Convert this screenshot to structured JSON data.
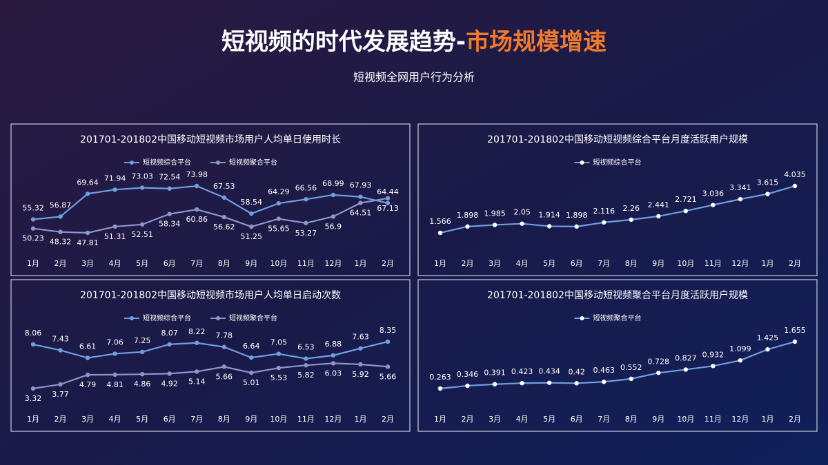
{
  "header": {
    "title": "短视频的时代发展趋势-",
    "title_highlight": "市场规模增速",
    "subtitle": "短视频全网用户行为分析"
  },
  "chart_data": [
    {
      "type": "line",
      "title": "201701-201802中国移动短视频市场用户人均单日使用时长",
      "categories": [
        "1月",
        "2月",
        "3月",
        "4月",
        "5月",
        "6月",
        "7月",
        "8月",
        "9月",
        "10月",
        "11月",
        "12月",
        "1月",
        "2月"
      ],
      "series": [
        {
          "name": "短视频综合平台",
          "color": "#6f9fe0",
          "values": [
            55.32,
            56.87,
            69.64,
            71.94,
            73.03,
            72.54,
            73.98,
            67.53,
            58.54,
            64.29,
            66.56,
            68.99,
            67.93,
            64.44
          ]
        },
        {
          "name": "短视频聚合平台",
          "color": "#8e96c8",
          "values": [
            50.23,
            48.32,
            47.81,
            51.31,
            52.51,
            58.34,
            60.86,
            56.62,
            51.25,
            55.65,
            53.27,
            56.9,
            64.51,
            67.13
          ]
        }
      ]
    },
    {
      "type": "line",
      "title": "201701-201802中国移动短视频综合平台月度活跃用户规模",
      "categories": [
        "1月",
        "2月",
        "3月",
        "4月",
        "5月",
        "6月",
        "7月",
        "8月",
        "9月",
        "10月",
        "11月",
        "12月",
        "1月",
        "2月"
      ],
      "series": [
        {
          "name": "短视频综合平台",
          "color": "#6f9fe0",
          "values": [
            1.566,
            1.898,
            1.985,
            2.05,
            1.914,
            1.898,
            2.116,
            2.26,
            2.441,
            2.721,
            3.036,
            3.341,
            3.615,
            4.035
          ]
        }
      ]
    },
    {
      "type": "line",
      "title": "201701-201802中国移动短视频市场用户人均单日启动次数",
      "categories": [
        "1月",
        "2月",
        "3月",
        "4月",
        "5月",
        "6月",
        "7月",
        "8月",
        "9月",
        "10月",
        "11月",
        "12月",
        "1月",
        "2月"
      ],
      "series": [
        {
          "name": "短视频综合平台",
          "color": "#6f9fe0",
          "values": [
            8.06,
            7.43,
            6.61,
            7.06,
            7.25,
            8.07,
            8.22,
            7.78,
            6.64,
            7.05,
            6.53,
            6.88,
            7.63,
            8.35
          ]
        },
        {
          "name": "短视频聚合平台",
          "color": "#8e96c8",
          "values": [
            3.32,
            3.77,
            4.79,
            4.81,
            4.86,
            4.92,
            5.14,
            5.66,
            5.01,
            5.53,
            5.82,
            6.03,
            5.92,
            5.66
          ]
        }
      ]
    },
    {
      "type": "line",
      "title": "201701-201802中国移动短视频聚合平台月度活跃用户规模",
      "categories": [
        "1月",
        "2月",
        "3月",
        "4月",
        "5月",
        "6月",
        "7月",
        "8月",
        "9月",
        "10月",
        "11月",
        "12月",
        "1月",
        "2月"
      ],
      "series": [
        {
          "name": "短视频聚合平台",
          "color": "#6f9fe0",
          "values": [
            0.263,
            0.346,
            0.391,
            0.423,
            0.434,
            0.42,
            0.463,
            0.552,
            0.728,
            0.827,
            0.932,
            1.099,
            1.425,
            1.655
          ]
        }
      ]
    }
  ]
}
